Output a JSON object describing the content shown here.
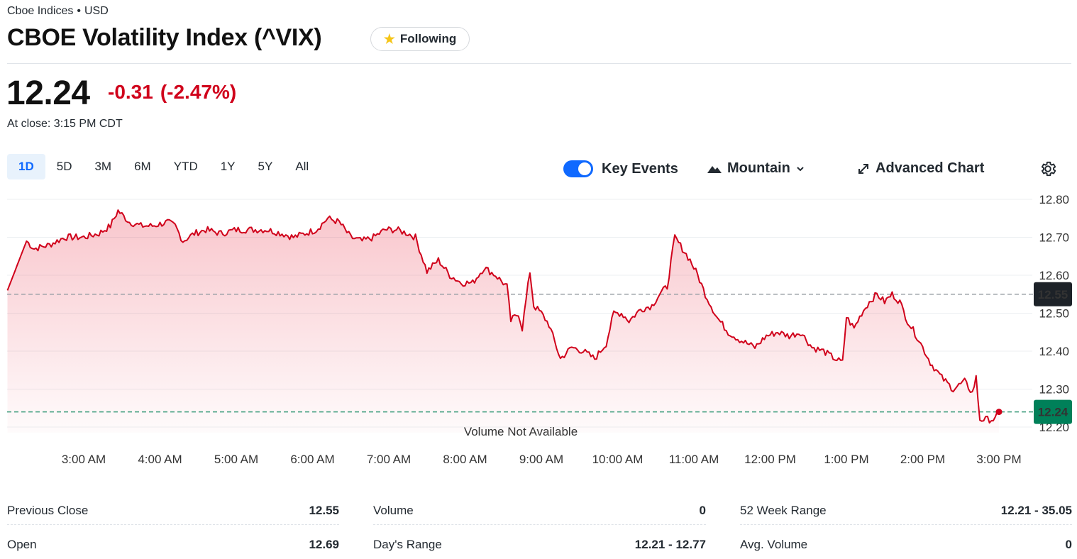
{
  "header": {
    "exchange": "Cboe Indices",
    "currency": "USD",
    "title": "CBOE Volatility Index (^VIX)",
    "follow_label": "Following",
    "price": "12.24",
    "change": "-0.31",
    "change_pct": "(-2.47%)",
    "close_time": "At close: 3:15 PM CDT"
  },
  "toolbar": {
    "ranges": [
      "1D",
      "5D",
      "3M",
      "6M",
      "YTD",
      "1Y",
      "5Y",
      "All"
    ],
    "active_range": "1D",
    "key_events_label": "Key Events",
    "key_events_on": true,
    "chart_type_label": "Mountain",
    "advanced_chart_label": "Advanced Chart"
  },
  "chart_data": {
    "type": "area",
    "y_ticks": [
      "12.80",
      "12.70",
      "12.60",
      "12.50",
      "12.40",
      "12.30",
      "12.20"
    ],
    "ylim": [
      12.2,
      12.8
    ],
    "x_ticks": [
      "3:00 AM",
      "4:00 AM",
      "5:00 AM",
      "6:00 AM",
      "7:00 AM",
      "8:00 AM",
      "9:00 AM",
      "10:00 AM",
      "11:00 AM",
      "12:00 PM",
      "1:00 PM",
      "2:00 PM",
      "3:00 PM"
    ],
    "previous_close": 12.55,
    "previous_close_label": "12.55",
    "last": 12.24,
    "last_label": "12.24",
    "volume_note": "Volume Not Available",
    "colors": {
      "line": "#d0021b",
      "prev_close_tag": "#1d2228",
      "last_tag": "#008059"
    },
    "series": [
      {
        "values": [
          [
            2.0,
            12.56
          ],
          [
            2.25,
            12.69
          ],
          [
            2.35,
            12.67
          ],
          [
            2.55,
            12.68
          ],
          [
            2.75,
            12.7
          ],
          [
            3.0,
            12.7
          ],
          [
            3.2,
            12.71
          ],
          [
            3.35,
            12.73
          ],
          [
            3.45,
            12.77
          ],
          [
            3.6,
            12.74
          ],
          [
            3.75,
            12.73
          ],
          [
            3.9,
            12.73
          ],
          [
            4.1,
            12.74
          ],
          [
            4.2,
            12.73
          ],
          [
            4.3,
            12.69
          ],
          [
            4.45,
            12.71
          ],
          [
            4.6,
            12.72
          ],
          [
            4.8,
            12.71
          ],
          [
            5.0,
            12.72
          ],
          [
            5.2,
            12.72
          ],
          [
            5.4,
            12.72
          ],
          [
            5.6,
            12.71
          ],
          [
            5.75,
            12.7
          ],
          [
            5.9,
            12.71
          ],
          [
            6.05,
            12.72
          ],
          [
            6.2,
            12.75
          ],
          [
            6.35,
            12.74
          ],
          [
            6.5,
            12.7
          ],
          [
            6.65,
            12.69
          ],
          [
            6.8,
            12.7
          ],
          [
            6.95,
            12.72
          ],
          [
            7.1,
            12.72
          ],
          [
            7.25,
            12.71
          ],
          [
            7.35,
            12.7
          ],
          [
            7.5,
            12.61
          ],
          [
            7.65,
            12.64
          ],
          [
            7.8,
            12.6
          ],
          [
            7.95,
            12.58
          ],
          [
            8.1,
            12.58
          ],
          [
            8.25,
            12.62
          ],
          [
            8.4,
            12.6
          ],
          [
            8.55,
            12.57
          ],
          [
            8.6,
            12.48
          ],
          [
            8.7,
            12.5
          ],
          [
            8.75,
            12.46
          ],
          [
            8.85,
            12.61
          ],
          [
            8.9,
            12.52
          ],
          [
            9.0,
            12.5
          ],
          [
            9.1,
            12.47
          ],
          [
            9.25,
            12.38
          ],
          [
            9.4,
            12.41
          ],
          [
            9.55,
            12.4
          ],
          [
            9.7,
            12.38
          ],
          [
            9.85,
            12.42
          ],
          [
            9.95,
            12.5
          ],
          [
            10.05,
            12.5
          ],
          [
            10.15,
            12.48
          ],
          [
            10.3,
            12.51
          ],
          [
            10.45,
            12.52
          ],
          [
            10.55,
            12.55
          ],
          [
            10.65,
            12.57
          ],
          [
            10.75,
            12.7
          ],
          [
            10.85,
            12.67
          ],
          [
            10.95,
            12.64
          ],
          [
            11.05,
            12.6
          ],
          [
            11.15,
            12.55
          ],
          [
            11.3,
            12.49
          ],
          [
            11.45,
            12.45
          ],
          [
            11.6,
            12.43
          ],
          [
            11.8,
            12.41
          ],
          [
            11.95,
            12.44
          ],
          [
            12.1,
            12.45
          ],
          [
            12.25,
            12.44
          ],
          [
            12.4,
            12.45
          ],
          [
            12.55,
            12.41
          ],
          [
            12.7,
            12.4
          ],
          [
            12.85,
            12.38
          ],
          [
            12.95,
            12.37
          ],
          [
            13.0,
            12.49
          ],
          [
            13.1,
            12.46
          ],
          [
            13.2,
            12.5
          ],
          [
            13.3,
            12.53
          ],
          [
            13.4,
            12.55
          ],
          [
            13.5,
            12.53
          ],
          [
            13.6,
            12.55
          ],
          [
            13.7,
            12.53
          ],
          [
            13.8,
            12.48
          ],
          [
            13.95,
            12.43
          ],
          [
            14.1,
            12.37
          ],
          [
            14.25,
            12.33
          ],
          [
            14.4,
            12.3
          ],
          [
            14.55,
            12.32
          ],
          [
            14.65,
            12.29
          ],
          [
            14.7,
            12.33
          ],
          [
            14.75,
            12.22
          ],
          [
            14.85,
            12.22
          ],
          [
            14.95,
            12.22
          ],
          [
            15.0,
            12.24
          ]
        ]
      }
    ]
  },
  "stats": {
    "col1": [
      {
        "label": "Previous Close",
        "value": "12.55"
      },
      {
        "label": "Open",
        "value": "12.69"
      }
    ],
    "col2": [
      {
        "label": "Volume",
        "value": "0"
      },
      {
        "label": "Day's Range",
        "value": "12.21 - 12.77"
      }
    ],
    "col3": [
      {
        "label": "52 Week Range",
        "value": "12.21 - 35.05"
      },
      {
        "label": "Avg. Volume",
        "value": "0"
      }
    ]
  }
}
